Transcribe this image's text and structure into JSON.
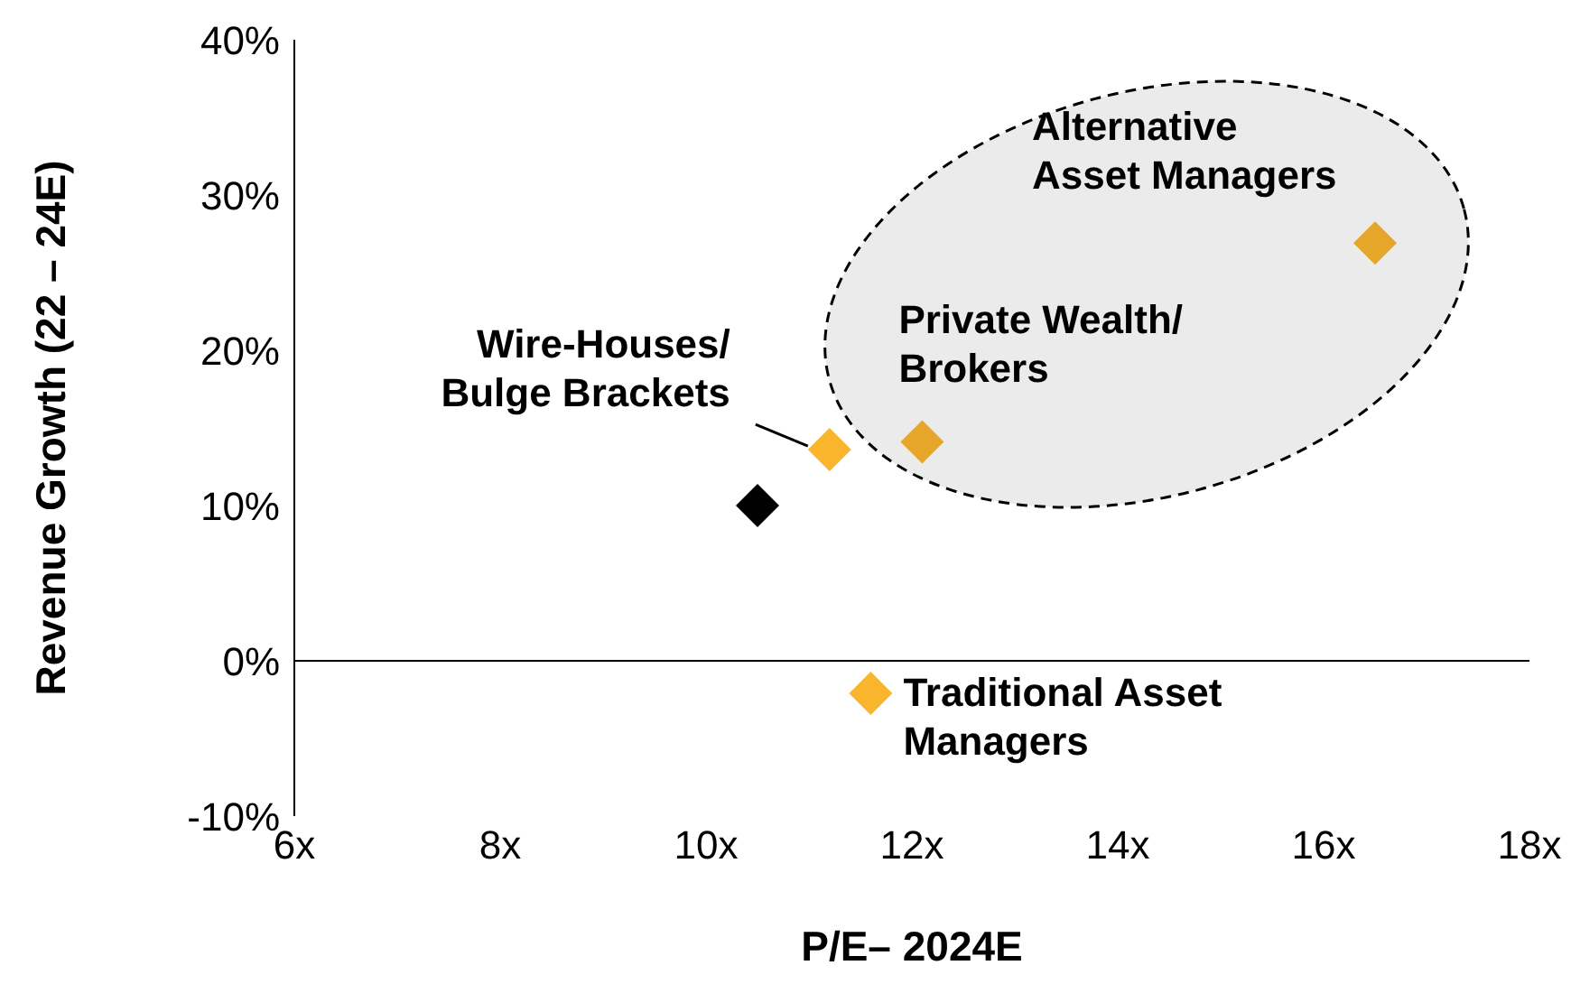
{
  "chart_data": {
    "type": "scatter",
    "xlabel": "P/E– 2024E",
    "ylabel": "Revenue Growth (22 – 24E)",
    "xlim": [
      6,
      18
    ],
    "ylim": [
      -10,
      40
    ],
    "xticks": [
      {
        "value": 6,
        "label": "6x"
      },
      {
        "value": 8,
        "label": "8x"
      },
      {
        "value": 10,
        "label": "10x"
      },
      {
        "value": 12,
        "label": "12x"
      },
      {
        "value": 14,
        "label": "14x"
      },
      {
        "value": 16,
        "label": "16x"
      },
      {
        "value": 18,
        "label": "18x"
      }
    ],
    "yticks": [
      {
        "value": -10,
        "label": "-10%"
      },
      {
        "value": 0,
        "label": "0%"
      },
      {
        "value": 10,
        "label": "10%"
      },
      {
        "value": 20,
        "label": "20%"
      },
      {
        "value": 30,
        "label": "30%"
      },
      {
        "value": 40,
        "label": "40%"
      }
    ],
    "series": [
      {
        "color": "#000000",
        "x": [
          10.5
        ],
        "values": [
          10
        ]
      },
      {
        "color": "#f9b52d",
        "x": [
          16.5,
          12.1,
          11.2,
          11.6
        ],
        "values": [
          26.9,
          14.1,
          13.6,
          -2.1
        ]
      }
    ],
    "marker": "diamond",
    "grid": false,
    "legend": false,
    "ref_lines": [
      {
        "axis": "y",
        "value": 0,
        "color": "#000000"
      }
    ],
    "annotations": [
      {
        "text": "Alternative\nAsset Managers",
        "x": 16.5,
        "y": 26.9
      },
      {
        "text": "Private Wealth/\nBrokers",
        "x": 12.1,
        "y": 14.1
      },
      {
        "text": "Wire-Houses/\nBulge Brackets",
        "x": 11.2,
        "y": 13.6
      },
      {
        "text": "Traditional Asset\nManagers",
        "x": 11.6,
        "y": -2.1
      }
    ]
  }
}
